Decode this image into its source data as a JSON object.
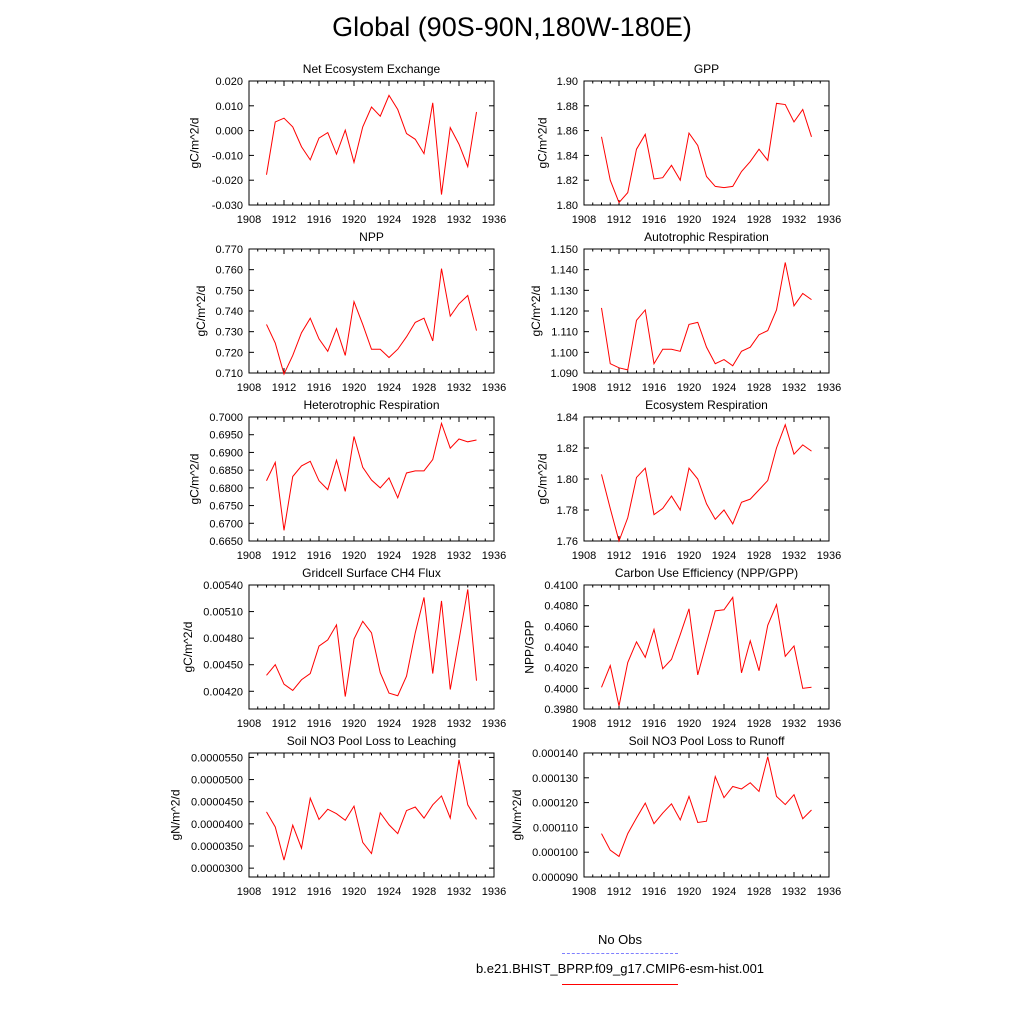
{
  "page": {
    "title": "Global (90S-90N,180W-180E)"
  },
  "legend": {
    "entries": [
      {
        "label": "No Obs",
        "color": "#7f7fff",
        "dashed": true
      },
      {
        "label": "b.e21.BHIST_BPRP.f09_g17.CMIP6-esm-hist.001",
        "color": "#ff0000",
        "dashed": false
      }
    ]
  },
  "chart_data": [
    {
      "type": "line",
      "title": "Net Ecosystem Exchange",
      "ylabel": "gC/m^2/d",
      "xlim": [
        1908,
        1936
      ],
      "ylim": [
        -0.03,
        0.02
      ],
      "xticks": [
        1908,
        1912,
        1916,
        1920,
        1924,
        1928,
        1932,
        1936
      ],
      "yticks": [
        -0.03,
        -0.02,
        -0.01,
        0.0,
        0.01,
        0.02
      ],
      "ytick_labels": [
        "-0.030",
        "-0.020",
        "-0.010",
        "0.000",
        "0.010",
        "0.020"
      ],
      "series": [
        {
          "color": "#ff0000",
          "x": [
            1910,
            1911,
            1912,
            1913,
            1914,
            1915,
            1916,
            1917,
            1918,
            1919,
            1920,
            1921,
            1922,
            1923,
            1924,
            1925,
            1926,
            1927,
            1928,
            1929,
            1930,
            1931,
            1932,
            1933,
            1934
          ],
          "y": [
            -0.0178,
            0.0035,
            0.005,
            0.0015,
            -0.0065,
            -0.0118,
            -0.003,
            -0.0008,
            -0.0095,
            0.0002,
            -0.0128,
            0.0015,
            0.0095,
            0.0058,
            0.0142,
            0.0085,
            -0.0012,
            -0.0035,
            -0.0093,
            0.0112,
            -0.0258,
            0.0012,
            -0.0055,
            -0.0145,
            0.0075
          ]
        }
      ]
    },
    {
      "type": "line",
      "title": "GPP",
      "ylabel": "gC/m^2/d",
      "xlim": [
        1908,
        1936
      ],
      "ylim": [
        1.8,
        1.9
      ],
      "xticks": [
        1908,
        1912,
        1916,
        1920,
        1924,
        1928,
        1932,
        1936
      ],
      "yticks": [
        1.8,
        1.82,
        1.84,
        1.86,
        1.88,
        1.9
      ],
      "ytick_labels": [
        "1.80",
        "1.82",
        "1.84",
        "1.86",
        "1.88",
        "1.90"
      ],
      "series": [
        {
          "color": "#ff0000",
          "x": [
            1910,
            1911,
            1912,
            1913,
            1914,
            1915,
            1916,
            1917,
            1918,
            1919,
            1920,
            1921,
            1922,
            1923,
            1924,
            1925,
            1926,
            1927,
            1928,
            1929,
            1930,
            1931,
            1932,
            1933,
            1934
          ],
          "y": [
            1.855,
            1.82,
            1.802,
            1.81,
            1.845,
            1.857,
            1.821,
            1.822,
            1.832,
            1.82,
            1.858,
            1.848,
            1.823,
            1.815,
            1.814,
            1.815,
            1.827,
            1.835,
            1.845,
            1.836,
            1.882,
            1.881,
            1.867,
            1.877,
            1.855
          ]
        }
      ]
    },
    {
      "type": "line",
      "title": "NPP",
      "ylabel": "gC/m^2/d",
      "xlim": [
        1908,
        1936
      ],
      "ylim": [
        0.71,
        0.77
      ],
      "xticks": [
        1908,
        1912,
        1916,
        1920,
        1924,
        1928,
        1932,
        1936
      ],
      "yticks": [
        0.71,
        0.72,
        0.73,
        0.74,
        0.75,
        0.76,
        0.77
      ],
      "ytick_labels": [
        "0.710",
        "0.720",
        "0.730",
        "0.740",
        "0.750",
        "0.760",
        "0.770"
      ],
      "series": [
        {
          "color": "#ff0000",
          "x": [
            1910,
            1911,
            1912,
            1913,
            1914,
            1915,
            1916,
            1917,
            1918,
            1919,
            1920,
            1921,
            1922,
            1923,
            1924,
            1925,
            1926,
            1927,
            1928,
            1929,
            1930,
            1931,
            1932,
            1933,
            1934
          ],
          "y": [
            0.7335,
            0.7245,
            0.7095,
            0.7185,
            0.7295,
            0.7365,
            0.7265,
            0.7205,
            0.7315,
            0.7185,
            0.7445,
            0.7335,
            0.7215,
            0.7215,
            0.7175,
            0.7215,
            0.7275,
            0.7345,
            0.7365,
            0.7255,
            0.7605,
            0.7375,
            0.7435,
            0.7475,
            0.7305
          ]
        }
      ]
    },
    {
      "type": "line",
      "title": "Autotrophic Respiration",
      "ylabel": "gC/m^2/d",
      "xlim": [
        1908,
        1936
      ],
      "ylim": [
        1.09,
        1.15
      ],
      "xticks": [
        1908,
        1912,
        1916,
        1920,
        1924,
        1928,
        1932,
        1936
      ],
      "yticks": [
        1.09,
        1.1,
        1.11,
        1.12,
        1.13,
        1.14,
        1.15
      ],
      "ytick_labels": [
        "1.090",
        "1.100",
        "1.110",
        "1.120",
        "1.130",
        "1.140",
        "1.150"
      ],
      "series": [
        {
          "color": "#ff0000",
          "x": [
            1910,
            1911,
            1912,
            1913,
            1914,
            1915,
            1916,
            1917,
            1918,
            1919,
            1920,
            1921,
            1922,
            1923,
            1924,
            1925,
            1926,
            1927,
            1928,
            1929,
            1930,
            1931,
            1932,
            1933,
            1934
          ],
          "y": [
            1.1215,
            1.0945,
            1.0925,
            1.0915,
            1.1155,
            1.1205,
            1.0945,
            1.1015,
            1.1015,
            1.1005,
            1.1135,
            1.1145,
            1.1025,
            1.0945,
            1.0965,
            1.0935,
            1.1005,
            1.1025,
            1.1085,
            1.1105,
            1.1205,
            1.1435,
            1.1225,
            1.1285,
            1.1255
          ]
        }
      ]
    },
    {
      "type": "line",
      "title": "Heterotrophic Respiration",
      "ylabel": "gC/m^2/d",
      "xlim": [
        1908,
        1936
      ],
      "ylim": [
        0.665,
        0.7
      ],
      "xticks": [
        1908,
        1912,
        1916,
        1920,
        1924,
        1928,
        1932,
        1936
      ],
      "yticks": [
        0.665,
        0.67,
        0.675,
        0.68,
        0.685,
        0.69,
        0.695,
        0.7
      ],
      "ytick_labels": [
        "0.6650",
        "0.6700",
        "0.6750",
        "0.6800",
        "0.6850",
        "0.6900",
        "0.6950",
        "0.7000"
      ],
      "series": [
        {
          "color": "#ff0000",
          "x": [
            1910,
            1911,
            1912,
            1913,
            1914,
            1915,
            1916,
            1917,
            1918,
            1919,
            1920,
            1921,
            1922,
            1923,
            1924,
            1925,
            1926,
            1927,
            1928,
            1929,
            1930,
            1931,
            1932,
            1933,
            1934
          ],
          "y": [
            0.682,
            0.6872,
            0.668,
            0.6832,
            0.6862,
            0.6875,
            0.682,
            0.6795,
            0.6878,
            0.679,
            0.6945,
            0.6858,
            0.6822,
            0.68,
            0.6828,
            0.6772,
            0.6842,
            0.6848,
            0.6848,
            0.688,
            0.6982,
            0.6912,
            0.6938,
            0.693,
            0.6935
          ]
        }
      ]
    },
    {
      "type": "line",
      "title": "Ecosystem Respiration",
      "ylabel": "gC/m^2/d",
      "xlim": [
        1908,
        1936
      ],
      "ylim": [
        1.76,
        1.84
      ],
      "xticks": [
        1908,
        1912,
        1916,
        1920,
        1924,
        1928,
        1932,
        1936
      ],
      "yticks": [
        1.76,
        1.78,
        1.8,
        1.82,
        1.84
      ],
      "ytick_labels": [
        "1.76",
        "1.78",
        "1.80",
        "1.82",
        "1.84"
      ],
      "series": [
        {
          "color": "#ff0000",
          "x": [
            1910,
            1911,
            1912,
            1913,
            1914,
            1915,
            1916,
            1917,
            1918,
            1919,
            1920,
            1921,
            1922,
            1923,
            1924,
            1925,
            1926,
            1927,
            1928,
            1929,
            1930,
            1931,
            1932,
            1933,
            1934
          ],
          "y": [
            1.803,
            1.781,
            1.76,
            1.775,
            1.801,
            1.807,
            1.777,
            1.781,
            1.789,
            1.78,
            1.807,
            1.8,
            1.784,
            1.774,
            1.78,
            1.771,
            1.785,
            1.787,
            1.793,
            1.799,
            1.82,
            1.835,
            1.816,
            1.822,
            1.818
          ]
        }
      ]
    },
    {
      "type": "line",
      "title": "Gridcell Surface CH4 Flux",
      "ylabel": "gC/m^2/d",
      "xlim": [
        1908,
        1936
      ],
      "ylim": [
        0.004,
        0.0054
      ],
      "xticks": [
        1908,
        1912,
        1916,
        1920,
        1924,
        1928,
        1932,
        1936
      ],
      "yticks": [
        0.0042,
        0.0045,
        0.0048,
        0.0051,
        0.0054
      ],
      "ytick_labels": [
        "0.00420",
        "0.00450",
        "0.00480",
        "0.00510",
        "0.00540"
      ],
      "series": [
        {
          "color": "#ff0000",
          "x": [
            1910,
            1911,
            1912,
            1913,
            1914,
            1915,
            1916,
            1917,
            1918,
            1919,
            1920,
            1921,
            1922,
            1923,
            1924,
            1925,
            1926,
            1927,
            1928,
            1929,
            1930,
            1931,
            1932,
            1933,
            1934
          ],
          "y": [
            0.00438,
            0.0045,
            0.00428,
            0.00421,
            0.00433,
            0.0044,
            0.00471,
            0.00478,
            0.00495,
            0.00414,
            0.00479,
            0.00499,
            0.00486,
            0.00441,
            0.00418,
            0.00415,
            0.00437,
            0.00486,
            0.00526,
            0.0044,
            0.00522,
            0.00422,
            0.00478,
            0.00535,
            0.00432
          ]
        }
      ]
    },
    {
      "type": "line",
      "title": "Carbon Use Efficiency (NPP/GPP)",
      "ylabel": "NPP/GPP",
      "xlim": [
        1908,
        1936
      ],
      "ylim": [
        0.398,
        0.41
      ],
      "xticks": [
        1908,
        1912,
        1916,
        1920,
        1924,
        1928,
        1932,
        1936
      ],
      "yticks": [
        0.398,
        0.4,
        0.402,
        0.404,
        0.406,
        0.408,
        0.41
      ],
      "ytick_labels": [
        "0.3980",
        "0.4000",
        "0.4020",
        "0.4040",
        "0.4060",
        "0.4080",
        "0.4100"
      ],
      "series": [
        {
          "color": "#ff0000",
          "x": [
            1910,
            1911,
            1912,
            1913,
            1914,
            1915,
            1916,
            1917,
            1918,
            1919,
            1920,
            1921,
            1922,
            1923,
            1924,
            1925,
            1926,
            1927,
            1928,
            1929,
            1930,
            1931,
            1932,
            1933,
            1934
          ],
          "y": [
            0.4001,
            0.4022,
            0.3983,
            0.4025,
            0.4045,
            0.403,
            0.4057,
            0.4019,
            0.4028,
            0.4052,
            0.4077,
            0.4013,
            0.4044,
            0.4075,
            0.4076,
            0.4088,
            0.4015,
            0.4046,
            0.4017,
            0.4061,
            0.4081,
            0.4031,
            0.4041,
            0.4,
            0.4001
          ]
        }
      ]
    },
    {
      "type": "line",
      "title": "Soil NO3 Pool Loss to Leaching",
      "ylabel": "gN/m^2/d",
      "xlim": [
        1908,
        1936
      ],
      "ylim": [
        2.8e-05,
        5.6e-05
      ],
      "xticks": [
        1908,
        1912,
        1916,
        1920,
        1924,
        1928,
        1932,
        1936
      ],
      "yticks": [
        3e-05,
        3.5e-05,
        4e-05,
        4.5e-05,
        5e-05,
        5.5e-05
      ],
      "ytick_labels": [
        "0.0000300",
        "0.0000350",
        "0.0000400",
        "0.0000450",
        "0.0000500",
        "0.0000550"
      ],
      "series": [
        {
          "color": "#ff0000",
          "x": [
            1910,
            1911,
            1912,
            1913,
            1914,
            1915,
            1916,
            1917,
            1918,
            1919,
            1920,
            1921,
            1922,
            1923,
            1924,
            1925,
            1926,
            1927,
            1928,
            1929,
            1930,
            1931,
            1932,
            1933,
            1934
          ],
          "y": [
            4.27e-05,
            3.93e-05,
            3.18e-05,
            3.97e-05,
            3.45e-05,
            4.58e-05,
            4.1e-05,
            4.33e-05,
            4.23e-05,
            4.08e-05,
            4.4e-05,
            3.58e-05,
            3.33e-05,
            4.25e-05,
            3.98e-05,
            3.78e-05,
            4.3e-05,
            4.38e-05,
            4.13e-05,
            4.43e-05,
            4.63e-05,
            4.13e-05,
            5.45e-05,
            4.43e-05,
            4.1e-05
          ]
        }
      ]
    },
    {
      "type": "line",
      "title": "Soil NO3 Pool Loss to Runoff",
      "ylabel": "gN/m^2/d",
      "xlim": [
        1908,
        1936
      ],
      "ylim": [
        9e-05,
        0.00014
      ],
      "xticks": [
        1908,
        1912,
        1916,
        1920,
        1924,
        1928,
        1932,
        1936
      ],
      "yticks": [
        9e-05,
        0.0001,
        0.00011,
        0.00012,
        0.00013,
        0.00014
      ],
      "ytick_labels": [
        "0.000090",
        "0.000100",
        "0.000110",
        "0.000120",
        "0.000130",
        "0.000140"
      ],
      "series": [
        {
          "color": "#ff0000",
          "x": [
            1910,
            1911,
            1912,
            1913,
            1914,
            1915,
            1916,
            1917,
            1918,
            1919,
            1920,
            1921,
            1922,
            1923,
            1924,
            1925,
            1926,
            1927,
            1928,
            1929,
            1930,
            1931,
            1932,
            1933,
            1934
          ],
          "y": [
            0.0001075,
            0.0001008,
            9.83e-05,
            0.0001075,
            0.0001138,
            0.0001198,
            0.0001115,
            0.0001158,
            0.0001195,
            0.000113,
            0.0001225,
            0.000112,
            0.0001125,
            0.0001305,
            0.000122,
            0.0001265,
            0.0001255,
            0.000128,
            0.0001245,
            0.0001385,
            0.0001225,
            0.0001192,
            0.0001232,
            0.0001135,
            0.000117
          ]
        }
      ]
    }
  ]
}
